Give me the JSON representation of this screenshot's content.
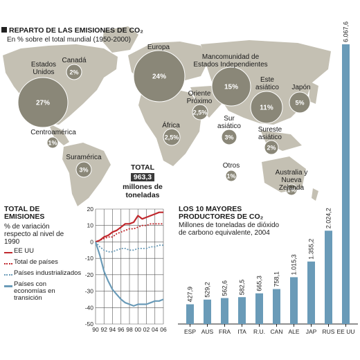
{
  "map": {
    "title": "REPARTO DE LAS EMISIONES DE CO₂",
    "subtitle": "En % sobre el total mundial (1950-2000)",
    "colors": {
      "land": "#c4c0b3",
      "bubble": "#8a8778",
      "bubble_border": "#ffffff"
    },
    "regions": [
      {
        "name": "Estados Unidos",
        "value": "27%"
      },
      {
        "name": "Canadá",
        "value": "2%"
      },
      {
        "name": "Centroamérica",
        "value": "1%"
      },
      {
        "name": "Suramérica",
        "value": "3%"
      },
      {
        "name": "Europa",
        "value": "24%"
      },
      {
        "name": "Mancomunidad de Estados Independientes",
        "value": "15%"
      },
      {
        "name": "Oriente Próximo",
        "value": "2,5%"
      },
      {
        "name": "África",
        "value": "2,5%"
      },
      {
        "name": "Sur asiático",
        "value": "3%"
      },
      {
        "name": "Este asiático",
        "value": "11%"
      },
      {
        "name": "Japón",
        "value": "5%"
      },
      {
        "name": "Sureste asiático",
        "value": "2%"
      },
      {
        "name": "Otros",
        "value": "1%"
      },
      {
        "name": "Australia y Nueva Zelanda",
        "value": "1%"
      }
    ],
    "total": {
      "label": "TOTAL",
      "value": "963,3",
      "unit": "millones de toneladas"
    }
  },
  "chart_data": [
    {
      "type": "line",
      "title": "TOTAL DE EMISIONES",
      "subtitle": "% de variación respecto al nivel de 1990",
      "x_ticks": [
        "90",
        "92",
        "94",
        "96",
        "98",
        "00",
        "02",
        "04",
        "06"
      ],
      "ylim": [
        -50,
        20
      ],
      "y_ticks": [
        "20",
        "10",
        "0",
        "-10",
        "-20",
        "-30",
        "-40",
        "-50"
      ],
      "grid": true,
      "series": [
        {
          "name": "EE UU",
          "color": "#c0282d",
          "style": "solid",
          "x": [
            1990,
            1991,
            1992,
            1993,
            1994,
            1995,
            1996,
            1997,
            1998,
            1999,
            2000,
            2001,
            2002,
            2003,
            2004,
            2005,
            2006
          ],
          "y": [
            0,
            1,
            3,
            4,
            6,
            7,
            9,
            11,
            11,
            12,
            16,
            14,
            15,
            16,
            17,
            18,
            18
          ]
        },
        {
          "name": "Total de países",
          "color": "#c0282d",
          "style": "dotted",
          "x": [
            1990,
            1991,
            1992,
            1993,
            1994,
            1995,
            1996,
            1997,
            1998,
            1999,
            2000,
            2001,
            2002,
            2003,
            2004,
            2005,
            2006
          ],
          "y": [
            0,
            1,
            2,
            3,
            3,
            5,
            6,
            7,
            8,
            8,
            9,
            10,
            10,
            11,
            11,
            11,
            11
          ]
        },
        {
          "name": "Países industrializados",
          "color": "#6a9bb8",
          "style": "dotted",
          "x": [
            1990,
            1991,
            1992,
            1993,
            1994,
            1995,
            1996,
            1997,
            1998,
            1999,
            2000,
            2001,
            2002,
            2003,
            2004,
            2005,
            2006
          ],
          "y": [
            0,
            -3,
            -5,
            -6,
            -6,
            -5,
            -4,
            -4,
            -5,
            -5,
            -4,
            -4,
            -4,
            -3,
            -3,
            -2,
            -2
          ]
        },
        {
          "name": "Países con economías en transición",
          "color": "#6a9bb8",
          "style": "solid",
          "x": [
            1990,
            1991,
            1992,
            1993,
            1994,
            1995,
            1996,
            1997,
            1998,
            1999,
            2000,
            2001,
            2002,
            2003,
            2004,
            2005,
            2006
          ],
          "y": [
            0,
            -8,
            -18,
            -24,
            -29,
            -32,
            -35,
            -37,
            -38,
            -39,
            -38,
            -38,
            -38,
            -37,
            -36,
            -36,
            -35
          ]
        }
      ]
    },
    {
      "type": "bar",
      "title": "LOS 10 MAYORES PRODUCTORES DE CO₂",
      "subtitle": "Millones de toneladas de dióxido de carbono equivalente, 2004",
      "categories": [
        "ESP",
        "AUS",
        "FRA",
        "ITA",
        "R.U.",
        "CAN",
        "ALE",
        "JAP",
        "RUS",
        "EE UU"
      ],
      "values": [
        427.9,
        529.2,
        562.6,
        582.5,
        665.3,
        758.1,
        1015.3,
        1355.2,
        2024.2,
        6067.6
      ],
      "value_labels": [
        "427,9",
        "529,2",
        "562,6",
        "582,5",
        "665,3",
        "758,1",
        "1.015,3",
        "1.355,2",
        "2.024,2",
        "6.067,6"
      ],
      "color": "#6a9bb8"
    }
  ]
}
